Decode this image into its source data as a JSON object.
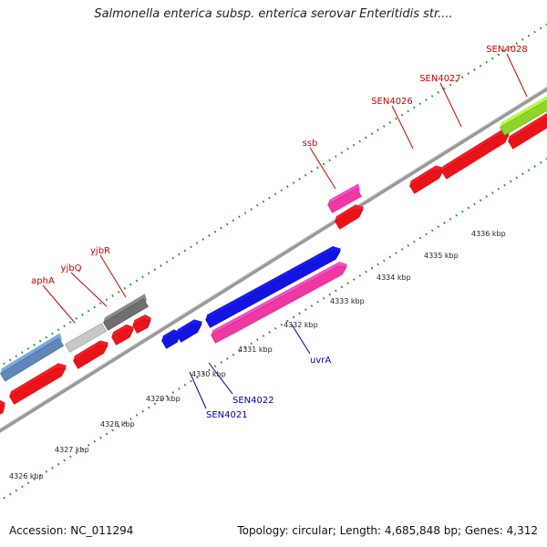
{
  "title": "Salmonella enterica subsp. enterica serovar Enteritidis str....",
  "footer": {
    "accession": "Accession: NC_011294",
    "summary": "Topology: circular; Length: 4,685,848 bp; Genes: 4,312"
  },
  "colors": {
    "top_strand_gene": "#e8141a",
    "top_label": "#cc0000",
    "bottom_label": "#0000aa",
    "blue_feature": "#1414e0",
    "pink_feature": "#ee3aa0",
    "steel_feature": "#5f88b8",
    "light_grey_feature": "#c8c8c8",
    "dark_grey_feature": "#6f6f6f",
    "lime_feature": "#8fd42e",
    "backbone": "#9a9a9a",
    "tick_marks": "#2a8a2a"
  },
  "tick_labels": [
    "4326 kbp",
    "4327 kbp",
    "4328 kbp",
    "4329 kbp",
    "4330 kbp",
    "4331 kbp",
    "4332 kbp",
    "4333 kbp",
    "4334 kbp",
    "4335 kbp",
    "4336 kbp"
  ],
  "gene_labels_top": [
    "aphA",
    "yjbQ",
    "yjbR",
    "ssb",
    "SEN4026",
    "SEN4027",
    "SEN4028"
  ],
  "gene_labels_bottom": [
    "SEN4021",
    "SEN4022",
    "uvrA"
  ]
}
